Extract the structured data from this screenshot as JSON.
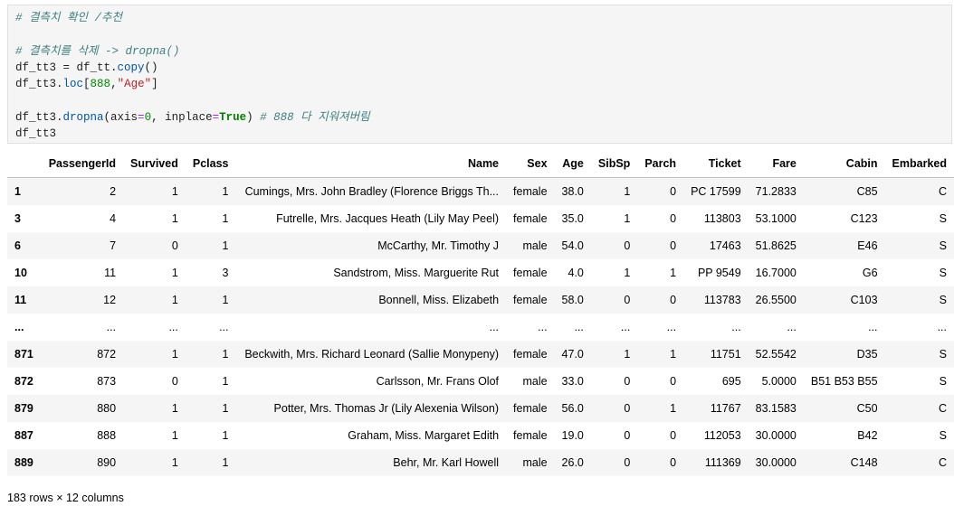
{
  "code": {
    "c1": "# 결측치 확인 /추천",
    "c2": "# 결측치를 삭제 -> dropna()",
    "l3a": "df_tt3 = df_tt.",
    "l3b": "copy",
    "l3c": "()",
    "l4a": "df_tt3.",
    "l4b": "loc",
    "l4c": "[",
    "l4d": "888",
    "l4e": ",",
    "l4f": "\"Age\"",
    "l4g": "]",
    "l5a": "df_tt3.",
    "l5b": "dropna",
    "l5c": "(axis",
    "l5d": "=",
    "l5e": "0",
    "l5f": ", inplace",
    "l5g": "=",
    "l5h": "True",
    "l5i": ") ",
    "l5j": "# 888 다 지워져버림",
    "l6": "df_tt3"
  },
  "table": {
    "columns": [
      "",
      "PassengerId",
      "Survived",
      "Pclass",
      "Name",
      "Sex",
      "Age",
      "SibSp",
      "Parch",
      "Ticket",
      "Fare",
      "Cabin",
      "Embarked"
    ],
    "rows": [
      [
        "1",
        "2",
        "1",
        "1",
        "Cumings, Mrs. John Bradley (Florence Briggs Th...",
        "female",
        "38.0",
        "1",
        "0",
        "PC 17599",
        "71.2833",
        "C85",
        "C"
      ],
      [
        "3",
        "4",
        "1",
        "1",
        "Futrelle, Mrs. Jacques Heath (Lily May Peel)",
        "female",
        "35.0",
        "1",
        "0",
        "113803",
        "53.1000",
        "C123",
        "S"
      ],
      [
        "6",
        "7",
        "0",
        "1",
        "McCarthy, Mr. Timothy J",
        "male",
        "54.0",
        "0",
        "0",
        "17463",
        "51.8625",
        "E46",
        "S"
      ],
      [
        "10",
        "11",
        "1",
        "3",
        "Sandstrom, Miss. Marguerite Rut",
        "female",
        "4.0",
        "1",
        "1",
        "PP 9549",
        "16.7000",
        "G6",
        "S"
      ],
      [
        "11",
        "12",
        "1",
        "1",
        "Bonnell, Miss. Elizabeth",
        "female",
        "58.0",
        "0",
        "0",
        "113783",
        "26.5500",
        "C103",
        "S"
      ],
      [
        "...",
        "...",
        "...",
        "...",
        "...",
        "...",
        "...",
        "...",
        "...",
        "...",
        "...",
        "...",
        "..."
      ],
      [
        "871",
        "872",
        "1",
        "1",
        "Beckwith, Mrs. Richard Leonard (Sallie Monypeny)",
        "female",
        "47.0",
        "1",
        "1",
        "11751",
        "52.5542",
        "D35",
        "S"
      ],
      [
        "872",
        "873",
        "0",
        "1",
        "Carlsson, Mr. Frans Olof",
        "male",
        "33.0",
        "0",
        "0",
        "695",
        "5.0000",
        "B51 B53 B55",
        "S"
      ],
      [
        "879",
        "880",
        "1",
        "1",
        "Potter, Mrs. Thomas Jr (Lily Alexenia Wilson)",
        "female",
        "56.0",
        "0",
        "1",
        "11767",
        "83.1583",
        "C50",
        "C"
      ],
      [
        "887",
        "888",
        "1",
        "1",
        "Graham, Miss. Margaret Edith",
        "female",
        "19.0",
        "0",
        "0",
        "112053",
        "30.0000",
        "B42",
        "S"
      ],
      [
        "889",
        "890",
        "1",
        "1",
        "Behr, Mr. Karl Howell",
        "male",
        "26.0",
        "0",
        "0",
        "111369",
        "30.0000",
        "C148",
        "C"
      ]
    ]
  },
  "footer": "183 rows × 12 columns"
}
